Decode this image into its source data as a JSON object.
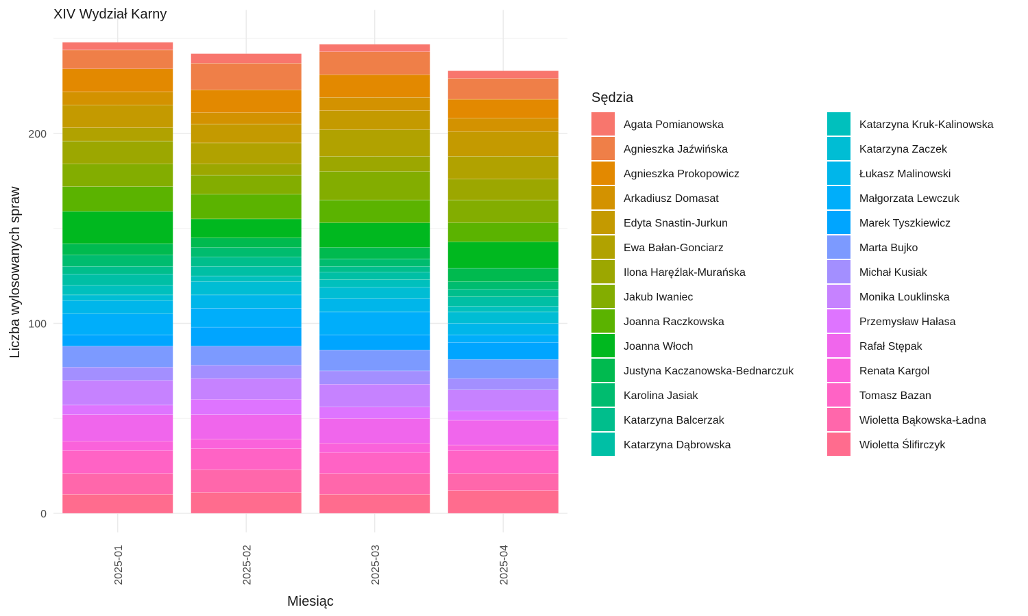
{
  "chart_data": {
    "type": "bar",
    "stacked": true,
    "title": "XIV Wydział Karny",
    "xlabel": "Miesiąc",
    "ylabel": "Liczba wylosowanych spraw",
    "categories": [
      "2025-01",
      "2025-02",
      "2025-03",
      "2025-04"
    ],
    "ylim": [
      -10,
      265
    ],
    "yticks": [
      0,
      100,
      200
    ],
    "grid": true,
    "legend_position": "right",
    "legend_title": "Sędzia",
    "series": [
      {
        "name": "Agata Pomianowska",
        "color": "#F8766D",
        "values": [
          4,
          5,
          4,
          4
        ]
      },
      {
        "name": "Agnieszka Jaźwińska",
        "color": "#EF7F48",
        "values": [
          10,
          14,
          12,
          11
        ]
      },
      {
        "name": "Agnieszka Prokopowicz",
        "color": "#E38900",
        "values": [
          12,
          12,
          12,
          10
        ]
      },
      {
        "name": "Arkadiusz Domasat",
        "color": "#D39200",
        "values": [
          7,
          6,
          7,
          7
        ]
      },
      {
        "name": "Edyta Snastin-Jurkun",
        "color": "#C49A00",
        "values": [
          12,
          10,
          10,
          13
        ]
      },
      {
        "name": "Ewa Bałan-Gonciarz",
        "color": "#B1A200",
        "values": [
          7,
          11,
          14,
          12
        ]
      },
      {
        "name": "Ilona Haręźlak-Murańska",
        "color": "#9CA700",
        "values": [
          12,
          6,
          8,
          11
        ]
      },
      {
        "name": "Jakub Iwaniec",
        "color": "#83AD00",
        "values": [
          12,
          10,
          15,
          12
        ]
      },
      {
        "name": "Joanna Raczkowska",
        "color": "#5BB300",
        "values": [
          13,
          13,
          12,
          10
        ]
      },
      {
        "name": "Joanna Włoch",
        "color": "#00B81F",
        "values": [
          17,
          10,
          13,
          14
        ]
      },
      {
        "name": "Justyna Kaczanowska-Bednarczuk",
        "color": "#00BA4F",
        "values": [
          6,
          5,
          6,
          7
        ]
      },
      {
        "name": "Karolina Jasiak",
        "color": "#00BC6F",
        "values": [
          6,
          5,
          4,
          4
        ]
      },
      {
        "name": "Katarzyna Balcerzak",
        "color": "#00BE8C",
        "values": [
          4,
          5,
          3,
          4
        ]
      },
      {
        "name": "Katarzyna Dąbrowska",
        "color": "#00BFA5",
        "values": [
          6,
          5,
          4,
          5
        ]
      },
      {
        "name": "Katarzyna Kruk-Kalinowska",
        "color": "#00C0BD",
        "values": [
          5,
          3,
          4,
          3
        ]
      },
      {
        "name": "Katarzyna Zaczek",
        "color": "#00BDD4",
        "values": [
          3,
          7,
          6,
          6
        ]
      },
      {
        "name": "Łukasz Malinowski",
        "color": "#00B6EA",
        "values": [
          7,
          7,
          7,
          6
        ]
      },
      {
        "name": "Małgorzata Lewczuk",
        "color": "#00AEFA",
        "values": [
          11,
          10,
          12,
          4
        ]
      },
      {
        "name": "Marek Tyszkiewicz",
        "color": "#00A5FF",
        "values": [
          6,
          10,
          8,
          9
        ]
      },
      {
        "name": "Marta Bujko",
        "color": "#7C9AFF",
        "values": [
          11,
          10,
          11,
          10
        ]
      },
      {
        "name": "Michał Kusiak",
        "color": "#A38FFF",
        "values": [
          7,
          7,
          7,
          6
        ]
      },
      {
        "name": "Monika Louklinska",
        "color": "#C682FF",
        "values": [
          13,
          11,
          12,
          11
        ]
      },
      {
        "name": "Przemysław Hałasa",
        "color": "#DE74FF",
        "values": [
          5,
          8,
          6,
          5
        ]
      },
      {
        "name": "Rafał Stępak",
        "color": "#F066EC",
        "values": [
          14,
          13,
          13,
          13
        ]
      },
      {
        "name": "Renata Kargol",
        "color": "#FA62DB",
        "values": [
          5,
          5,
          5,
          3
        ]
      },
      {
        "name": "Tomasz Bazan",
        "color": "#FF63C5",
        "values": [
          12,
          11,
          11,
          12
        ]
      },
      {
        "name": "Wioletta Bąkowska-Ładna",
        "color": "#FF67AB",
        "values": [
          11,
          12,
          11,
          9
        ]
      },
      {
        "name": "Wioletta Ślifirczyk",
        "color": "#FF6C8E",
        "values": [
          10,
          11,
          10,
          12
        ]
      }
    ]
  }
}
